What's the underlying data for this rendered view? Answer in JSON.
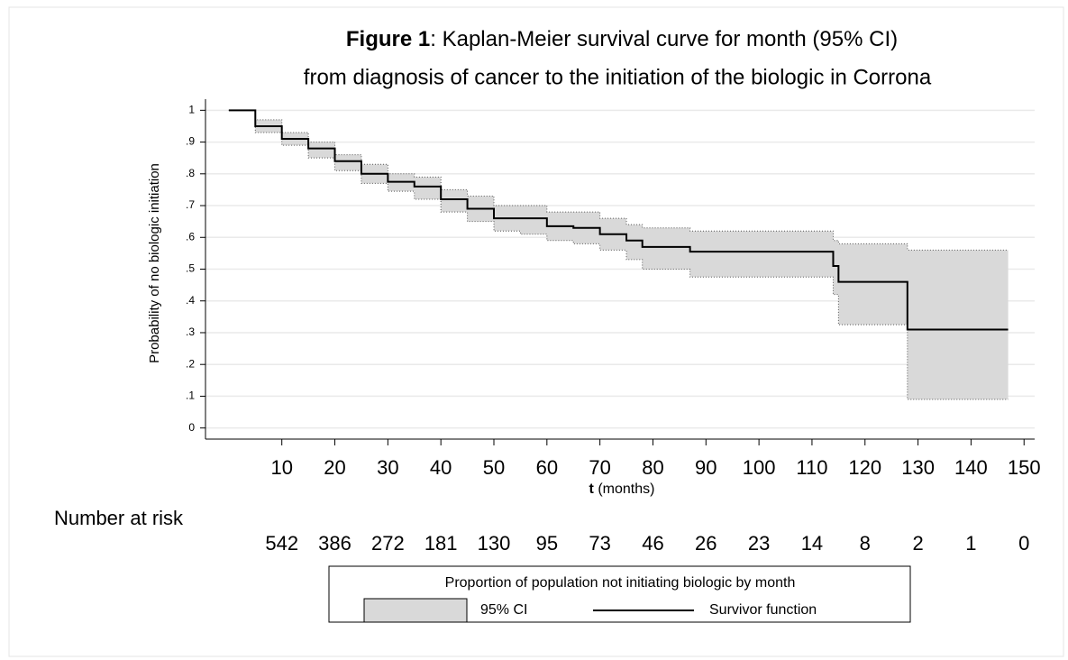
{
  "chart_data": {
    "type": "step",
    "title_label": "Figure 1",
    "title": ": Kaplan-Meier survival curve for month (95% CI)",
    "subtitle": "from diagnosis of cancer to the initiation of the biologic in Corrona",
    "ylabel": "Probability of no biologic initiation",
    "xlabel_var": "t",
    "xlabel": "(months)",
    "x": [
      0,
      5,
      10,
      15,
      20,
      25,
      30,
      35,
      40,
      45,
      50,
      55,
      60,
      65,
      70,
      75,
      78,
      87,
      114,
      115,
      128,
      147
    ],
    "series": [
      {
        "name": "Survivor function",
        "color": "#000000",
        "values": [
          1,
          0.95,
          0.91,
          0.88,
          0.84,
          0.8,
          0.775,
          0.76,
          0.72,
          0.69,
          0.66,
          0.66,
          0.635,
          0.63,
          0.61,
          0.59,
          0.57,
          0.555,
          0.51,
          0.46,
          0.31,
          0.31
        ]
      }
    ],
    "ci": {
      "name": "95% CI",
      "color": "#d9d9d9",
      "lower": [
        1,
        0.93,
        0.89,
        0.85,
        0.81,
        0.77,
        0.745,
        0.72,
        0.68,
        0.65,
        0.62,
        0.61,
        0.59,
        0.58,
        0.56,
        0.53,
        0.5,
        0.475,
        0.42,
        0.325,
        0.09,
        0.09
      ],
      "upper": [
        1,
        0.97,
        0.93,
        0.9,
        0.86,
        0.83,
        0.8,
        0.79,
        0.75,
        0.73,
        0.7,
        0.7,
        0.68,
        0.68,
        0.66,
        0.64,
        0.63,
        0.62,
        0.59,
        0.58,
        0.56,
        0.56
      ]
    },
    "xlim": [
      -4.4,
      152
    ],
    "ylim": [
      -0.035,
      1.035
    ],
    "xticks": [
      10,
      20,
      30,
      40,
      50,
      60,
      70,
      80,
      90,
      100,
      110,
      120,
      130,
      140,
      150
    ],
    "yticks": [
      0,
      {
        "value": 0.1,
        "label": ".1"
      },
      {
        "value": 0.2,
        "label": ".2"
      },
      {
        "value": 0.3,
        "label": ".3"
      },
      {
        "value": 0.4,
        "label": ".4"
      },
      {
        "value": 0.5,
        "label": ".5"
      },
      {
        "value": 0.6,
        "label": ".6"
      },
      {
        "value": 0.7,
        "label": ".7"
      },
      {
        "value": 0.8,
        "label": ".8"
      },
      {
        "value": 0.9,
        "label": ".9"
      },
      1
    ],
    "grid": true,
    "at_risk": {
      "label": "Number at risk",
      "values": [
        542,
        386,
        272,
        181,
        130,
        95,
        73,
        46,
        26,
        23,
        14,
        8,
        2,
        1,
        0
      ]
    },
    "legend_title": "Proportion of population not initiating biologic by month"
  }
}
